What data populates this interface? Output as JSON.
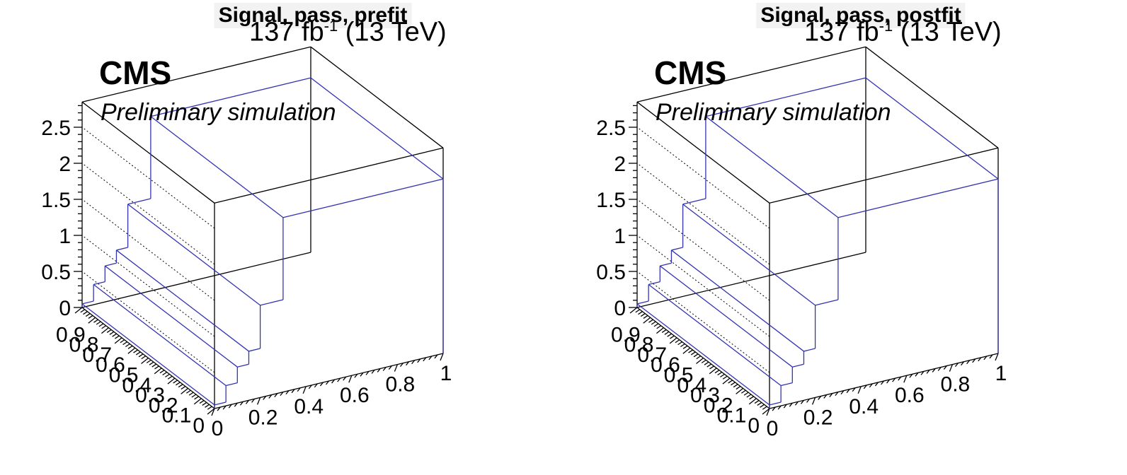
{
  "panels": [
    {
      "title": "Signal, pass, prefit",
      "lumi": "137 fb",
      "lumi_sup": "-1",
      "energy": "(13 TeV)",
      "experiment": "CMS",
      "status": "Preliminary simulation"
    },
    {
      "title": "Signal, pass, postfit",
      "lumi": "137 fb",
      "lumi_sup": "-1",
      "energy": "(13 TeV)",
      "experiment": "CMS",
      "status": "Preliminary simulation"
    }
  ],
  "colors": {
    "lego": "#3333b2",
    "frame": "#000000",
    "title_bg": "#f2f2f2"
  },
  "chart_data": [
    {
      "type": "lego",
      "title": "Signal, pass, prefit",
      "z_ticks": [
        "0",
        "0.5",
        "1",
        "1.5",
        "2",
        "2.5"
      ],
      "x_ticks": [
        "0",
        "0.2",
        "0.4",
        "0.6",
        "0.8",
        "1"
      ],
      "y_ticks": [
        "0",
        "0.1",
        "0.2",
        "0.3",
        "0.4",
        "0.5",
        "0.6",
        "0.7",
        "0.8",
        "0.9"
      ],
      "zlim": [
        0,
        2.85
      ],
      "grid": true,
      "x_edges": [
        0,
        0.05,
        0.1,
        0.15,
        0.2,
        0.3,
        1.0
      ],
      "z_values": [
        0.05,
        0.28,
        0.5,
        0.68,
        1.28,
        2.42
      ],
      "y_range": [
        0,
        1
      ]
    },
    {
      "type": "lego",
      "title": "Signal, pass, postfit",
      "z_ticks": [
        "0",
        "0.5",
        "1",
        "1.5",
        "2",
        "2.5"
      ],
      "x_ticks": [
        "0",
        "0.2",
        "0.4",
        "0.6",
        "0.8",
        "1"
      ],
      "y_ticks": [
        "0",
        "0.1",
        "0.2",
        "0.3",
        "0.4",
        "0.5",
        "0.6",
        "0.7",
        "0.8",
        "0.9"
      ],
      "zlim": [
        0,
        2.85
      ],
      "grid": true,
      "x_edges": [
        0,
        0.05,
        0.1,
        0.15,
        0.2,
        0.3,
        1.0
      ],
      "z_values": [
        0.05,
        0.28,
        0.5,
        0.68,
        1.28,
        2.42
      ],
      "y_range": [
        0,
        1
      ]
    }
  ]
}
